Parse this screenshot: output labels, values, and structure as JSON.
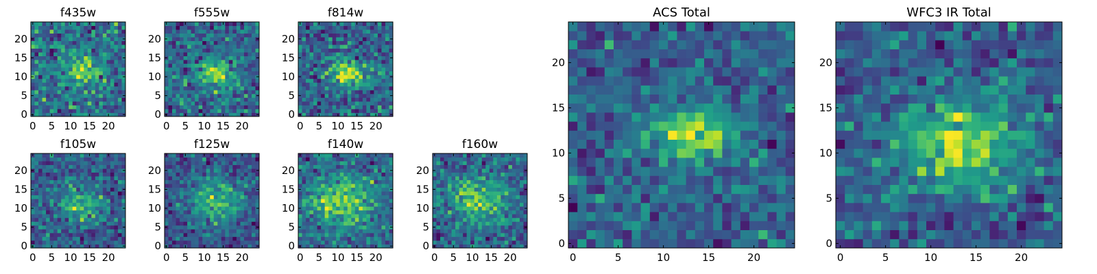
{
  "chart_data": [
    {
      "type": "heatmap",
      "title": "f435w",
      "grid": [
        25,
        25
      ],
      "xlim": [
        -0.5,
        24.5
      ],
      "ylim": [
        -0.5,
        24.5
      ],
      "xticks": [
        0,
        5,
        10,
        15,
        20
      ],
      "yticks": [
        0,
        5,
        10,
        15,
        20
      ],
      "peak": [
        13,
        12
      ],
      "peak_sigma": [
        3.0,
        2.5
      ],
      "noise": 0.55,
      "colormap": "viridis",
      "seed": 11
    },
    {
      "type": "heatmap",
      "title": "f555w",
      "grid": [
        25,
        25
      ],
      "xlim": [
        -0.5,
        24.5
      ],
      "ylim": [
        -0.5,
        24.5
      ],
      "xticks": [
        0,
        5,
        10,
        15,
        20
      ],
      "yticks": [
        0,
        5,
        10,
        15,
        20
      ],
      "peak": [
        13,
        11
      ],
      "peak_sigma": [
        3.5,
        2.5
      ],
      "noise": 0.5,
      "colormap": "viridis",
      "seed": 23
    },
    {
      "type": "heatmap",
      "title": "f814w",
      "grid": [
        25,
        25
      ],
      "xlim": [
        -0.5,
        24.5
      ],
      "ylim": [
        -0.5,
        24.5
      ],
      "xticks": [
        0,
        5,
        10,
        15,
        20
      ],
      "yticks": [
        0,
        5,
        10,
        15,
        20
      ],
      "peak": [
        13,
        11
      ],
      "peak_sigma": [
        3.5,
        2.5
      ],
      "noise": 0.5,
      "colormap": "viridis",
      "seed": 37
    },
    {
      "type": "heatmap",
      "title": "f105w",
      "grid": [
        25,
        25
      ],
      "xlim": [
        -0.5,
        24.5
      ],
      "ylim": [
        -0.5,
        24.5
      ],
      "xticks": [
        0,
        5,
        10,
        15,
        20
      ],
      "yticks": [
        0,
        5,
        10,
        15,
        20
      ],
      "peak": [
        13,
        11
      ],
      "peak_sigma": [
        3.5,
        3.0
      ],
      "noise": 0.55,
      "colormap": "viridis",
      "seed": 41
    },
    {
      "type": "heatmap",
      "title": "f125w",
      "grid": [
        25,
        25
      ],
      "xlim": [
        -0.5,
        24.5
      ],
      "ylim": [
        -0.5,
        24.5
      ],
      "xticks": [
        0,
        5,
        10,
        15,
        20
      ],
      "yticks": [
        0,
        5,
        10,
        15,
        20
      ],
      "peak": [
        13,
        12
      ],
      "peak_sigma": [
        5.0,
        5.0
      ],
      "noise": 0.5,
      "colormap": "viridis",
      "seed": 53
    },
    {
      "type": "heatmap",
      "title": "f140w",
      "grid": [
        25,
        25
      ],
      "xlim": [
        -0.5,
        24.5
      ],
      "ylim": [
        -0.5,
        24.5
      ],
      "xticks": [
        0,
        5,
        10,
        15,
        20
      ],
      "yticks": [
        0,
        5,
        10,
        15,
        20
      ],
      "peak": [
        11,
        12
      ],
      "peak_sigma": [
        6.0,
        5.0
      ],
      "noise": 0.5,
      "colormap": "viridis",
      "seed": 67
    },
    {
      "type": "heatmap",
      "title": "f160w",
      "grid": [
        25,
        25
      ],
      "xlim": [
        -0.5,
        24.5
      ],
      "ylim": [
        -0.5,
        24.5
      ],
      "xticks": [
        0,
        5,
        10,
        15,
        20
      ],
      "yticks": [
        0,
        5,
        10,
        15,
        20
      ],
      "peak": [
        11,
        12
      ],
      "peak_sigma": [
        5.0,
        4.0
      ],
      "noise": 0.5,
      "colormap": "viridis",
      "seed": 79
    },
    {
      "type": "heatmap",
      "title": "ACS Total",
      "grid": [
        25,
        25
      ],
      "xlim": [
        -0.5,
        24.5
      ],
      "ylim": [
        -0.5,
        24.5
      ],
      "xticks": [
        0,
        5,
        10,
        15,
        20
      ],
      "yticks": [
        0,
        5,
        10,
        15,
        20
      ],
      "peak": [
        13,
        12
      ],
      "peak_sigma": [
        3.5,
        2.0
      ],
      "noise": 0.4,
      "colormap": "viridis",
      "seed": 91
    },
    {
      "type": "heatmap",
      "title": "WFC3 IR Total",
      "grid": [
        25,
        25
      ],
      "xlim": [
        -0.5,
        24.5
      ],
      "ylim": [
        -0.5,
        24.5
      ],
      "xticks": [
        0,
        5,
        10,
        15,
        20
      ],
      "yticks": [
        0,
        5,
        10,
        15,
        20
      ],
      "peak": [
        13,
        11
      ],
      "peak_sigma": [
        5.0,
        3.5
      ],
      "noise": 0.4,
      "colormap": "viridis",
      "seed": 103
    }
  ]
}
